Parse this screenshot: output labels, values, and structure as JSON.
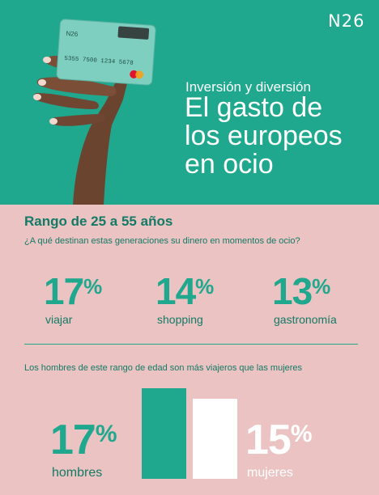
{
  "brand": {
    "logo_text": "N26",
    "primary_color": "#1fa88d",
    "dark_color": "#137a66",
    "background_color": "#ebc3c3"
  },
  "hero": {
    "subtitle": "Inversión y diversión",
    "title_lines": [
      "El gasto de",
      "los europeos",
      "en ocio"
    ],
    "card_number": "5355 7500 1234 5678",
    "card_brand_text": "N26"
  },
  "section": {
    "title": "Rango de 25 a 55 años",
    "question": "¿A qué destinan estas generaciones su dinero en momentos de ocio?",
    "stats": [
      {
        "value": "17",
        "unit": "%",
        "label": "viajar"
      },
      {
        "value": "14",
        "unit": "%",
        "label": "shopping"
      },
      {
        "value": "13",
        "unit": "%",
        "label": "gastronomía"
      }
    ]
  },
  "comparison": {
    "title": "Los hombres de este rango de edad son más viajeros que las mujeres",
    "men": {
      "value": "17",
      "unit": "%",
      "label": "hombres",
      "bar_value": 17
    },
    "women": {
      "value": "15",
      "unit": "%",
      "label": "mujeres",
      "bar_value": 15
    }
  }
}
